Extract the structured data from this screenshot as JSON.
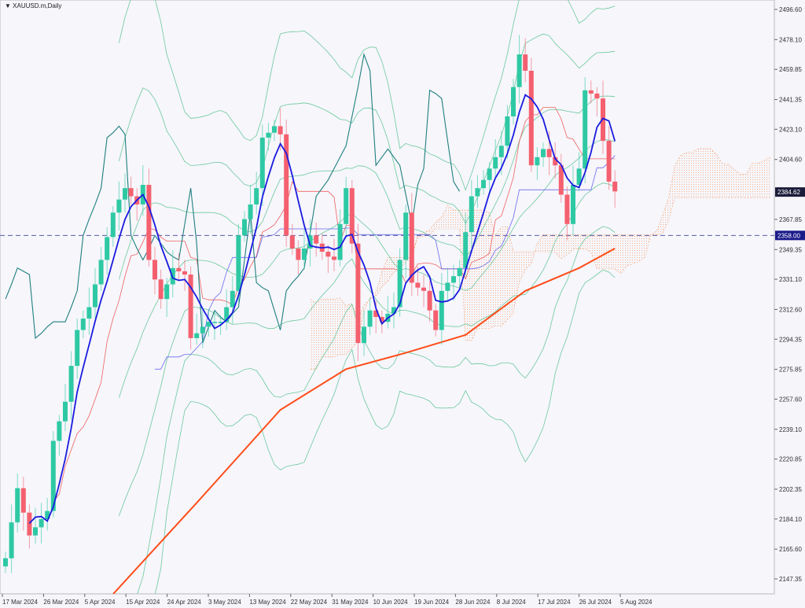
{
  "window": {
    "title": "XAUUSD.m,Daily",
    "menu_icon": "triangle-down-icon"
  },
  "chart_data": {
    "type": "candlestick",
    "symbol": "XAUUSD.m",
    "timeframe": "Daily",
    "ylim": [
      2147.35,
      2496.6
    ],
    "y_ticks": [
      "2496.60",
      "2478.10",
      "2459.85",
      "2441.35",
      "2423.10",
      "2404.60",
      "2367.85",
      "2349.35",
      "2331.10",
      "2312.60",
      "2294.35",
      "2275.85",
      "2257.60",
      "2239.10",
      "2220.85",
      "2202.35",
      "2184.10",
      "2165.60",
      "2147.35"
    ],
    "x_ticks": [
      "17 Mar 2024",
      "26 Mar 2024",
      "5 Apr 2024",
      "15 Apr 2024",
      "24 Apr 2024",
      "3 May 2024",
      "13 May 2024",
      "22 May 2024",
      "31 May 2024",
      "10 Jun 2024",
      "19 Jun 2024",
      "28 Jun 2024",
      "8 Jul 2024",
      "17 Jul 2024",
      "26 Jul 2024",
      "5 Aug 2024"
    ],
    "close": [
      2160,
      2182,
      2203,
      2188,
      2174,
      2179,
      2184,
      2189,
      2232,
      2244,
      2256,
      2278,
      2300,
      2307,
      2314,
      2328,
      2343,
      2357,
      2372,
      2380,
      2387,
      2382,
      2377,
      2389,
      2343,
      2331,
      2319,
      2328,
      2338,
      2336,
      2334,
      2295,
      2298,
      2302,
      2305,
      2305,
      2305,
      2314,
      2324,
      2358,
      2368,
      2377,
      2387,
      2418,
      2421,
      2425,
      2420,
      2358,
      2350,
      2343,
      2350,
      2358,
      2353,
      2348,
      2345,
      2343,
      2365,
      2387,
      2353,
      2292,
      2302,
      2312,
      2308,
      2305,
      2310,
      2314,
      2343,
      2372,
      2329,
      2326,
      2324,
      2312,
      2300,
      2324,
      2329,
      2333,
      2338,
      2360,
      2382,
      2387,
      2392,
      2399,
      2406,
      2413,
      2431,
      2449,
      2469,
      2459,
      2401,
      2406,
      2411,
      2406,
      2401,
      2383,
      2365,
      2389,
      2399,
      2447,
      2445,
      2442,
      2416,
      2391,
      2385
    ],
    "open_first": 2155,
    "long_ma": {
      "bar": [
        18,
        32,
        46,
        57,
        67,
        77,
        87,
        96,
        102
      ],
      "value": [
        2138,
        2194,
        2251,
        2276,
        2286,
        2297,
        2324,
        2338,
        2350
      ]
    },
    "current_price": "2384.62",
    "horizontal_line": {
      "value": 2358.0,
      "label": "2358.00"
    },
    "colors": {
      "bull": "#2ec9a4",
      "bear": "#f4606f",
      "fast_ma": "#1a1adf",
      "long_ma": "#ff4d1a",
      "tenkan": "#f06060",
      "kijun": "#6a6af0",
      "bands": "#6cc99a",
      "chikou": "#1f7f7f",
      "cloud": "#f4a070",
      "hline": "#5a5aa8"
    }
  }
}
